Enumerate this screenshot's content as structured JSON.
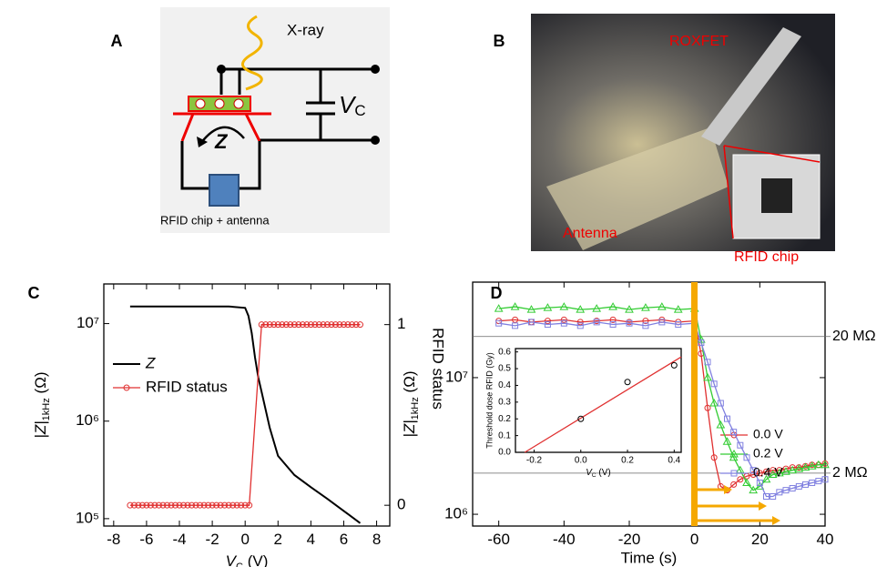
{
  "panel_a": {
    "letter": "A",
    "xray": "X-ray",
    "vc": [
      "V",
      "C"
    ],
    "z": "Z",
    "chip": "RFID chip + antenna"
  },
  "panel_b": {
    "letter": "B",
    "roxfet": "ROXFET",
    "antenna": "Antenna",
    "chip": "RFID chip"
  },
  "chart_data": [
    {
      "type": "line",
      "letter": "C",
      "x_label": [
        "V",
        "C",
        " (V)"
      ],
      "y_label": [
        "|Z|",
        "1kHz",
        " (Ω)"
      ],
      "y2_label": "RFID status",
      "xlim": [
        -8.6,
        8.8
      ],
      "xticks": [
        -8,
        -6,
        -4,
        -2,
        0,
        2,
        4,
        6,
        8
      ],
      "yscale": "log",
      "ylim": [
        84000,
        25500000
      ],
      "yticks": [
        {
          "value": 100000,
          "label": "10⁵"
        },
        {
          "value": 1000000,
          "label": "10⁶"
        },
        {
          "value": 10000000,
          "label": "10⁷"
        }
      ],
      "y2lim": [
        -0.115,
        1.225
      ],
      "y2ticks": [
        0,
        1
      ],
      "legend": "left",
      "series": [
        {
          "name": "Z",
          "color": "#000000",
          "x": [
            -7,
            -6,
            -5,
            -4,
            -3,
            -2,
            -1,
            0,
            0.2,
            0.4,
            0.6,
            0.8,
            1,
            1.5,
            2,
            3,
            4,
            5,
            6,
            7
          ],
          "values": [
            15000000,
            15000000,
            15000000,
            15000000,
            15000000,
            15000000,
            15000000,
            14500000,
            12000000,
            8000000,
            4500000,
            2800000,
            2000000,
            850000,
            440000,
            280000,
            210000,
            160000,
            120000,
            90000
          ]
        },
        {
          "name": "RFID status",
          "color": "#e03030",
          "marker": "circle",
          "axis": "y2",
          "x": [
            -7,
            -6.75,
            -6.5,
            -6.25,
            -6,
            -5.75,
            -5.5,
            -5.25,
            -5,
            -4.75,
            -4.5,
            -4.25,
            -4,
            -3.75,
            -3.5,
            -3.25,
            -3,
            -2.75,
            -2.5,
            -2.25,
            -2,
            -1.75,
            -1.5,
            -1.25,
            -1,
            -0.75,
            -0.5,
            -0.25,
            0,
            0.25,
            1,
            1.25,
            1.5,
            1.75,
            2,
            2.25,
            2.5,
            2.75,
            3,
            3.25,
            3.5,
            3.75,
            4,
            4.25,
            4.5,
            4.75,
            5,
            5.25,
            5.5,
            5.75,
            6,
            6.25,
            6.5,
            6.75,
            7
          ],
          "values": [
            0,
            0,
            0,
            0,
            0,
            0,
            0,
            0,
            0,
            0,
            0,
            0,
            0,
            0,
            0,
            0,
            0,
            0,
            0,
            0,
            0,
            0,
            0,
            0,
            0,
            0,
            0,
            0,
            0,
            0,
            1,
            1,
            1,
            1,
            1,
            1,
            1,
            1,
            1,
            1,
            1,
            1,
            1,
            1,
            1,
            1,
            1,
            1,
            1,
            1,
            1,
            1,
            1,
            1,
            1
          ]
        }
      ]
    },
    {
      "type": "line",
      "letter": "D",
      "x_label": "Time (s)",
      "y_label": [
        "|Z|",
        "1kHz",
        " (Ω)"
      ],
      "xlim": [
        -68,
        40
      ],
      "xticks": [
        -60,
        -40,
        -20,
        0,
        20,
        40
      ],
      "yscale": "log",
      "ylim": [
        820000,
        50000000
      ],
      "yticks": [
        {
          "value": 1000000,
          "label": "10⁶"
        },
        {
          "value": 10000000,
          "label": "10⁷"
        }
      ],
      "reference_lines": [
        {
          "value": 20000000,
          "label": "20 MΩ"
        },
        {
          "value": 2000000,
          "label": "2 MΩ"
        }
      ],
      "legend": "right",
      "x": [
        -60,
        -55,
        -50,
        -45,
        -40,
        -35,
        -30,
        -25,
        -20,
        -15,
        -10,
        -5,
        0,
        2,
        4,
        6,
        8,
        10,
        12,
        14,
        16,
        18,
        20,
        22,
        24,
        26,
        28,
        30,
        32,
        34,
        36,
        38,
        40
      ],
      "series": [
        {
          "name": "0.0 V",
          "color": "#e03030",
          "marker": "circle",
          "values": [
            26000000,
            26500000,
            25500000,
            26000000,
            26500000,
            25500000,
            26000000,
            26500000,
            25500000,
            26000000,
            26500000,
            25500000,
            26000000,
            15000000,
            6000000,
            2600000,
            1600000,
            1500000,
            1650000,
            1800000,
            1900000,
            1950000,
            2000000,
            2050000,
            2100000,
            2100000,
            2150000,
            2200000,
            2200000,
            2250000,
            2300000,
            2300000,
            2350000
          ]
        },
        {
          "name": "0.2 V",
          "color": "#33cc33",
          "marker": "triangle",
          "values": [
            32000000,
            33000000,
            31500000,
            32500000,
            33000000,
            31500000,
            32000000,
            33000000,
            31500000,
            32500000,
            33000000,
            31500000,
            32000000,
            19000000,
            10000000,
            6500000,
            4500000,
            3400000,
            2600000,
            2100000,
            1700000,
            1500000,
            1600000,
            1800000,
            1950000,
            2000000,
            2050000,
            2100000,
            2150000,
            2200000,
            2250000,
            2300000,
            2300000
          ]
        },
        {
          "name": "0.4 V",
          "color": "#8080e0",
          "marker": "square",
          "values": [
            25000000,
            24000000,
            25500000,
            24500000,
            25000000,
            24000000,
            25500000,
            24500000,
            25000000,
            24000000,
            25500000,
            24500000,
            25000000,
            18000000,
            13000000,
            9000000,
            6500000,
            5000000,
            4000000,
            3200000,
            2600000,
            2100000,
            1700000,
            1350000,
            1350000,
            1450000,
            1500000,
            1550000,
            1600000,
            1650000,
            1700000,
            1750000,
            1800000
          ]
        }
      ],
      "inset": {
        "type": "scatter",
        "x_label": [
          "V",
          "C",
          " (V)"
        ],
        "y_label": "Threshold dose RFID (Gy)",
        "xlim": [
          -0.28,
          0.43
        ],
        "xticks": [
          -0.2,
          {
            "value": 0,
            "label": "0.0"
          },
          0.2,
          0.4
        ],
        "ylim": [
          0,
          0.62
        ],
        "yticks": [
          {
            "value": 0,
            "label": "0.0"
          },
          0.1,
          0.2,
          0.3,
          0.4,
          0.5,
          0.6
        ],
        "x": [
          0,
          0.2,
          0.4
        ],
        "values": [
          0.2,
          0.42,
          0.52
        ],
        "fit": {
          "color": "#e03030",
          "x": [
            -0.24,
            0.43
          ],
          "values": [
            0,
            0.57
          ]
        }
      }
    }
  ]
}
